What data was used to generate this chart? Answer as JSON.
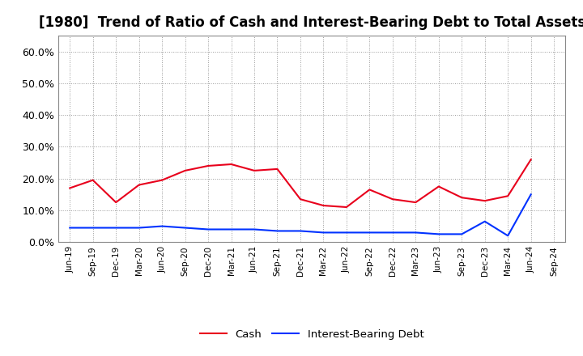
{
  "title": "[1980]  Trend of Ratio of Cash and Interest-Bearing Debt to Total Assets",
  "x_labels": [
    "Jun-19",
    "Sep-19",
    "Dec-19",
    "Mar-20",
    "Jun-20",
    "Sep-20",
    "Dec-20",
    "Mar-21",
    "Jun-21",
    "Sep-21",
    "Dec-21",
    "Mar-22",
    "Jun-22",
    "Sep-22",
    "Dec-22",
    "Mar-23",
    "Jun-23",
    "Sep-23",
    "Dec-23",
    "Mar-24",
    "Jun-24",
    "Sep-24"
  ],
  "cash": [
    17.0,
    19.5,
    12.5,
    18.0,
    19.5,
    22.5,
    24.0,
    24.5,
    22.5,
    23.0,
    13.5,
    11.5,
    11.0,
    16.5,
    13.5,
    12.5,
    17.5,
    14.0,
    13.0,
    14.5,
    26.0,
    null
  ],
  "interest_bearing_debt": [
    4.5,
    4.5,
    4.5,
    4.5,
    5.0,
    4.5,
    4.0,
    4.0,
    4.0,
    3.5,
    3.5,
    3.0,
    3.0,
    3.0,
    3.0,
    3.0,
    2.5,
    2.5,
    6.5,
    2.0,
    15.0,
    null
  ],
  "cash_color": "#e8001c",
  "debt_color": "#0032ff",
  "ylim": [
    0,
    65
  ],
  "yticks": [
    0,
    10,
    20,
    30,
    40,
    50,
    60
  ],
  "ytick_labels": [
    "0.0%",
    "10.0%",
    "20.0%",
    "30.0%",
    "40.0%",
    "50.0%",
    "60.0%"
  ],
  "background_color": "#ffffff",
  "grid_color": "#999999",
  "title_fontsize": 12,
  "legend_labels": [
    "Cash",
    "Interest-Bearing Debt"
  ]
}
